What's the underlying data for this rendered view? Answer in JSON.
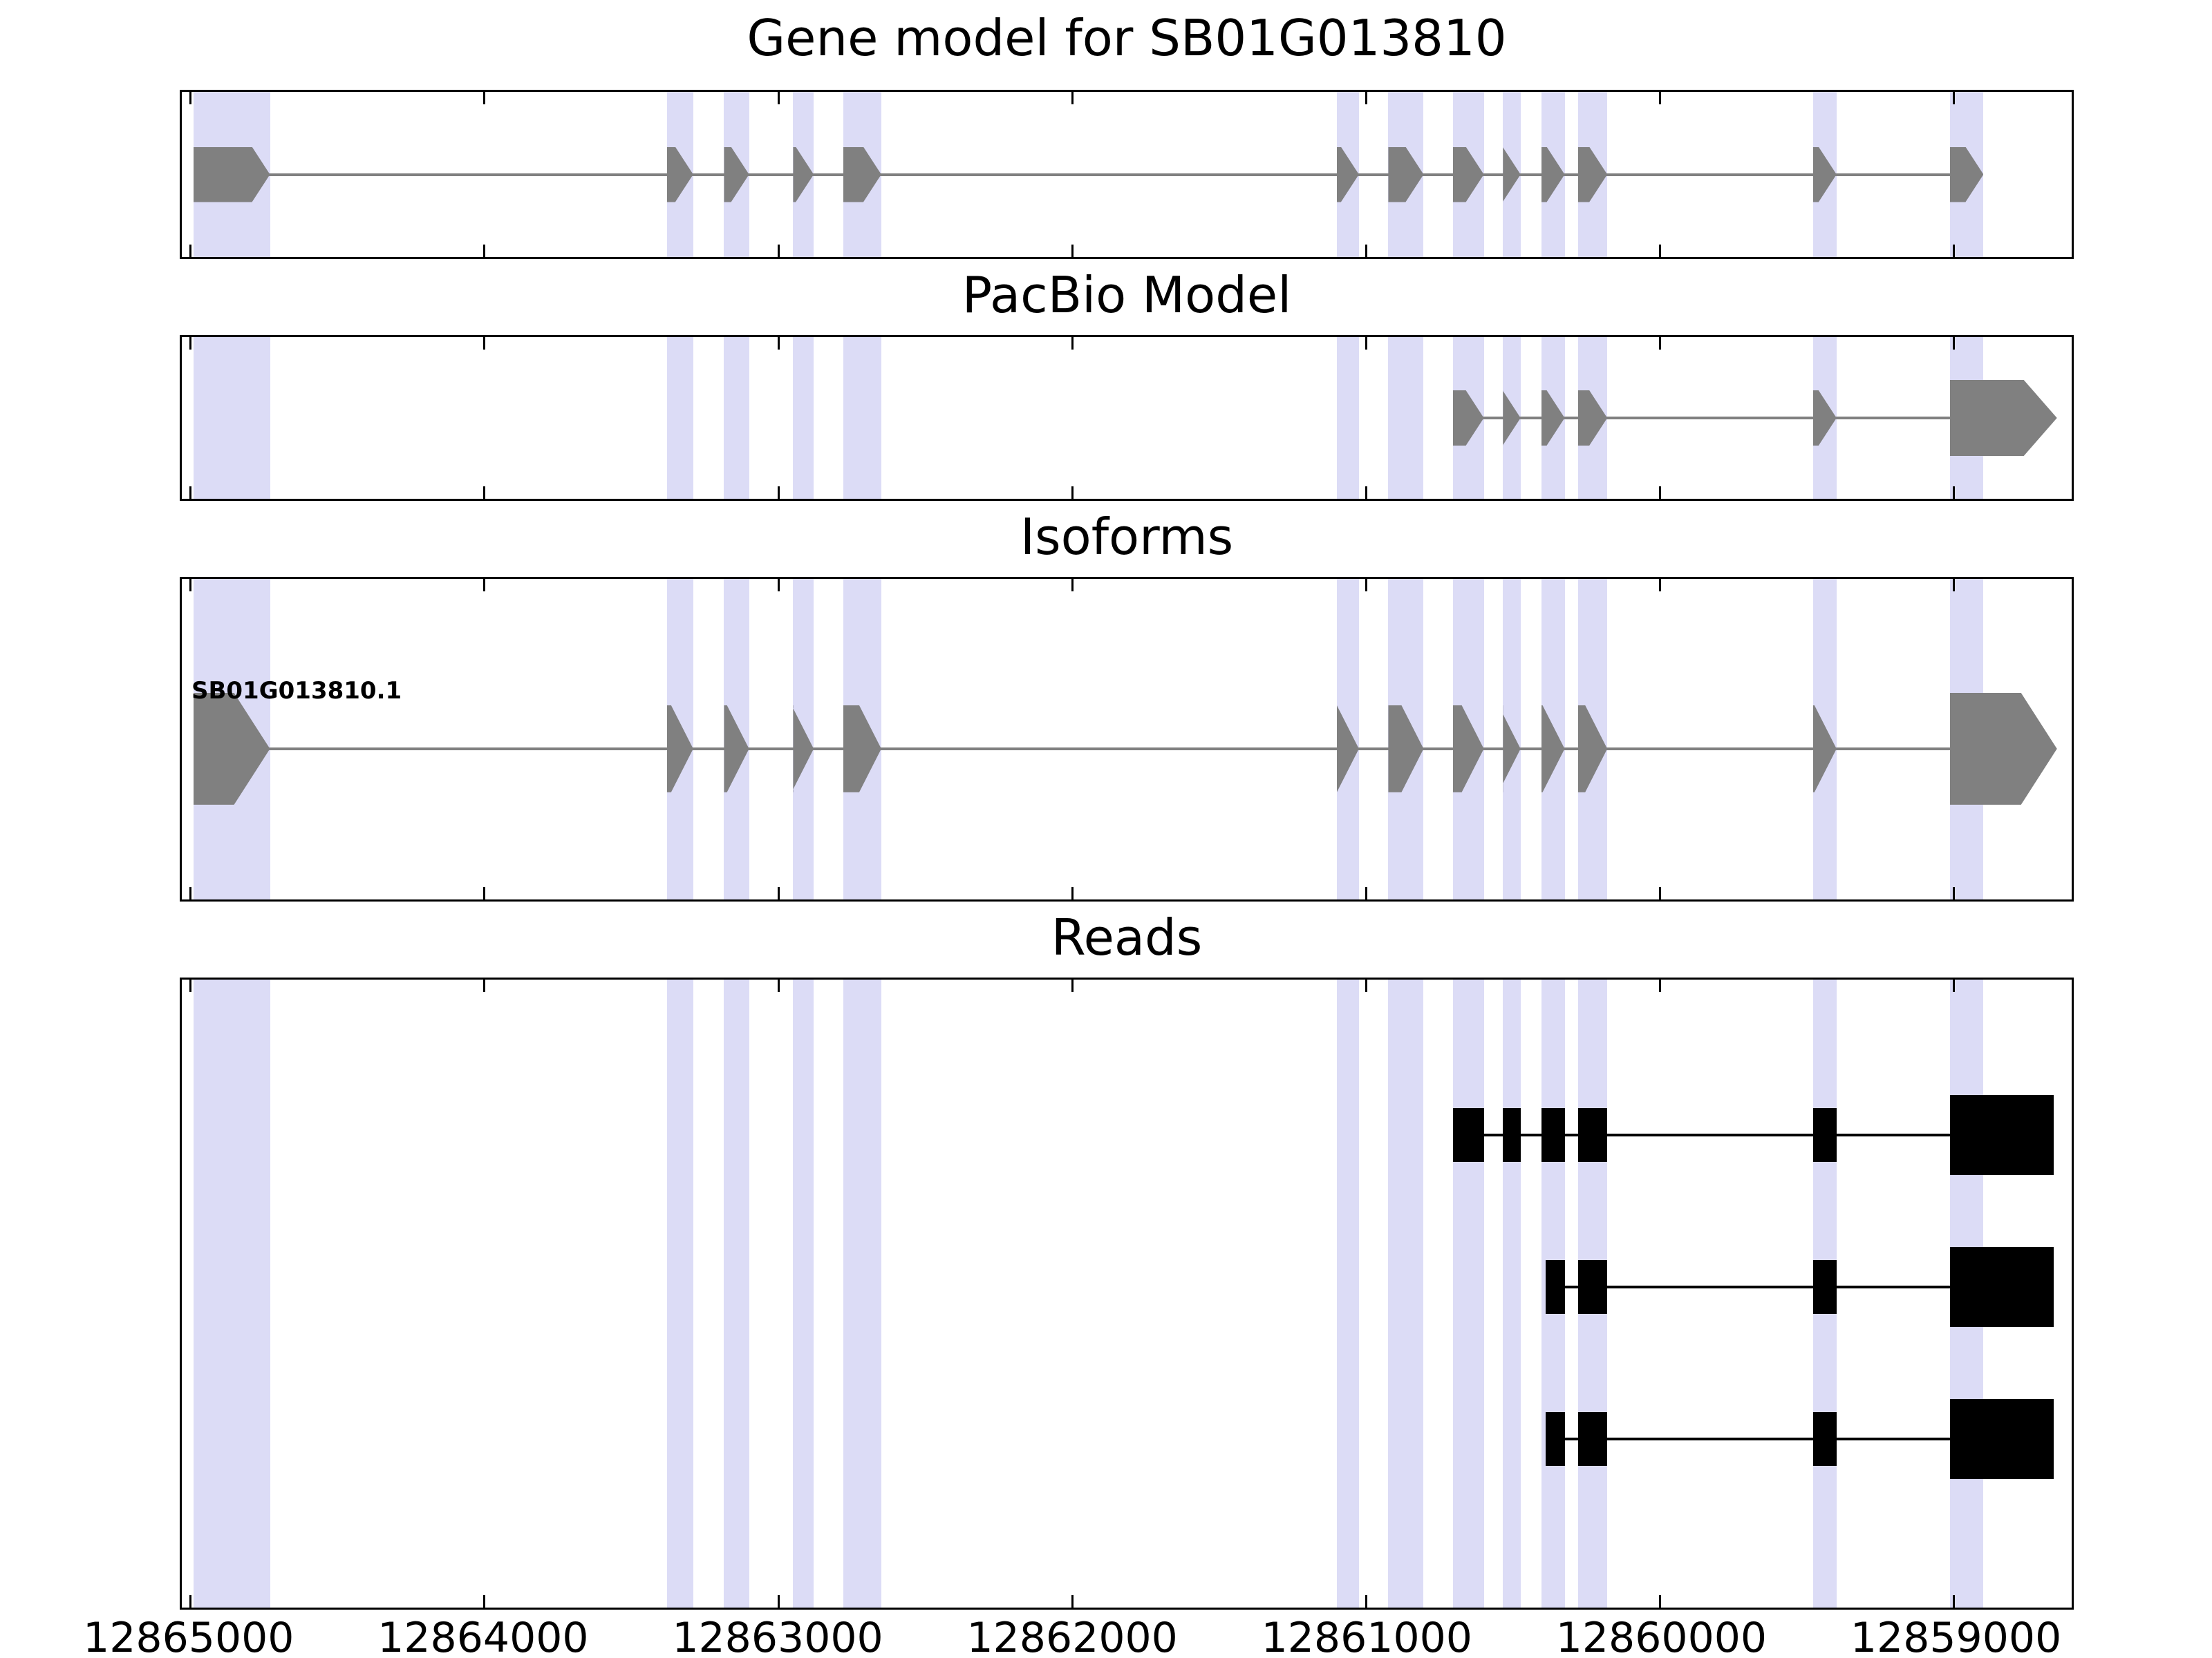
{
  "titles": {
    "gene": "Gene model for SB01G013810",
    "pacbio": "PacBio Model",
    "isoforms": "Isoforms",
    "reads": "Reads"
  },
  "isoform_label": "SB01G013810.1",
  "colors": {
    "background": "#ffffff",
    "axis": "#000000",
    "exon": "#808080",
    "intron_line": "#808080",
    "read": "#000000",
    "highlight": "#dcdcf6"
  },
  "chart_data": {
    "type": "gene-model-tracks",
    "gene_id": "SB01G013810",
    "x_axis": {
      "orientation": "decreasing-left-to-right",
      "left_value": 12865030,
      "right_value": 12858600,
      "ticks": [
        12865000,
        12864000,
        12863000,
        12862000,
        12861000,
        12860000,
        12859000
      ],
      "tick_labels": [
        "12865000",
        "12864000",
        "12863000",
        "12862000",
        "12861000",
        "12860000",
        "12859000"
      ]
    },
    "highlight_regions": [
      [
        12864990,
        12864730
      ],
      [
        12863380,
        12863290
      ],
      [
        12863185,
        12863100
      ],
      [
        12862950,
        12862880
      ],
      [
        12862780,
        12862650
      ],
      [
        12861100,
        12861025
      ],
      [
        12860925,
        12860805
      ],
      [
        12860705,
        12860600
      ],
      [
        12860535,
        12860475
      ],
      [
        12860405,
        12860325
      ],
      [
        12860280,
        12860180
      ],
      [
        12859480,
        12859400
      ],
      [
        12859015,
        12858900
      ]
    ],
    "tracks": [
      {
        "name": "gene_model",
        "title": "Gene model for SB01G013810",
        "type": "model",
        "strand_arrow": "right",
        "line": [
          12864900,
          12858950
        ],
        "features": [
          {
            "from": 12864990,
            "to": 12864730
          },
          {
            "from": 12863380,
            "to": 12863290
          },
          {
            "from": 12863185,
            "to": 12863100
          },
          {
            "from": 12862950,
            "to": 12862880
          },
          {
            "from": 12862780,
            "to": 12862650
          },
          {
            "from": 12861100,
            "to": 12861025
          },
          {
            "from": 12860925,
            "to": 12860805
          },
          {
            "from": 12860705,
            "to": 12860600
          },
          {
            "from": 12860535,
            "to": 12860475
          },
          {
            "from": 12860405,
            "to": 12860325
          },
          {
            "from": 12860280,
            "to": 12860180
          },
          {
            "from": 12859480,
            "to": 12859400
          },
          {
            "from": 12859015,
            "to": 12858900
          }
        ]
      },
      {
        "name": "pacbio",
        "title": "PacBio Model",
        "type": "model",
        "strand_arrow": "right",
        "line": [
          12860660,
          12858700
        ],
        "features": [
          {
            "from": 12860705,
            "to": 12860600
          },
          {
            "from": 12860535,
            "to": 12860475
          },
          {
            "from": 12860405,
            "to": 12860325
          },
          {
            "from": 12860280,
            "to": 12860180
          },
          {
            "from": 12859480,
            "to": 12859400
          },
          {
            "from": 12859015,
            "to": 12858650,
            "size": "large"
          }
        ]
      },
      {
        "name": "isoforms",
        "title": "Isoforms",
        "type": "model",
        "strand_arrow": "right",
        "label": "SB01G013810.1",
        "line": [
          12864900,
          12858800
        ],
        "features": [
          {
            "from": 12864990,
            "to": 12864730,
            "size": "large"
          },
          {
            "from": 12863380,
            "to": 12863290
          },
          {
            "from": 12863185,
            "to": 12863100
          },
          {
            "from": 12862950,
            "to": 12862880
          },
          {
            "from": 12862780,
            "to": 12862650
          },
          {
            "from": 12861100,
            "to": 12861025
          },
          {
            "from": 12860925,
            "to": 12860805
          },
          {
            "from": 12860705,
            "to": 12860600
          },
          {
            "from": 12860535,
            "to": 12860475
          },
          {
            "from": 12860405,
            "to": 12860325
          },
          {
            "from": 12860280,
            "to": 12860180
          },
          {
            "from": 12859480,
            "to": 12859400
          },
          {
            "from": 12859015,
            "to": 12858650,
            "size": "large"
          }
        ]
      },
      {
        "name": "reads",
        "title": "Reads",
        "type": "reads",
        "reads": [
          {
            "y_frac": 0.248,
            "blocks": [
              {
                "from": 12860705,
                "to": 12860600
              },
              {
                "from": 12860535,
                "to": 12860475
              },
              {
                "from": 12860405,
                "to": 12860325
              },
              {
                "from": 12860280,
                "to": 12860180
              },
              {
                "from": 12859480,
                "to": 12859400
              },
              {
                "from": 12859015,
                "to": 12858660,
                "size": "large"
              }
            ]
          },
          {
            "y_frac": 0.49,
            "blocks": [
              {
                "from": 12860390,
                "to": 12860325
              },
              {
                "from": 12860280,
                "to": 12860180
              },
              {
                "from": 12859480,
                "to": 12859400
              },
              {
                "from": 12859015,
                "to": 12858660,
                "size": "large"
              }
            ]
          },
          {
            "y_frac": 0.732,
            "blocks": [
              {
                "from": 12860390,
                "to": 12860325
              },
              {
                "from": 12860280,
                "to": 12860180
              },
              {
                "from": 12859480,
                "to": 12859400
              },
              {
                "from": 12859015,
                "to": 12858660,
                "size": "large"
              }
            ]
          }
        ]
      }
    ]
  }
}
